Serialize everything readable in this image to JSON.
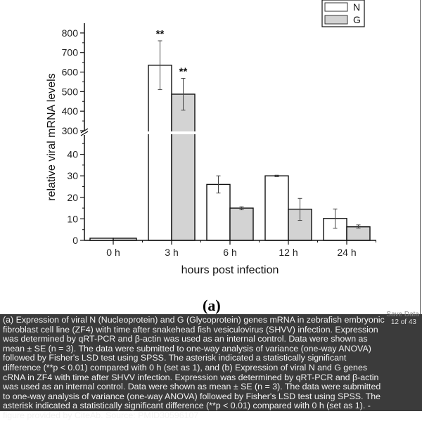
{
  "chart_data": {
    "type": "bar",
    "categories": [
      "0 h",
      "3 h",
      "6 h",
      "12 h",
      "24 h"
    ],
    "series": [
      {
        "name": "N",
        "color": "#ffffff",
        "values": [
          1,
          635,
          26,
          30,
          10.2
        ],
        "error_low": [
          1,
          510,
          22,
          29.6,
          5.6
        ],
        "error_high": [
          1,
          760,
          30,
          30.3,
          14.6
        ],
        "annotations": [
          "",
          "**",
          "",
          "",
          ""
        ]
      },
      {
        "name": "G",
        "color": "#d3d3d3",
        "values": [
          1,
          487,
          15,
          14.5,
          6.3
        ],
        "error_low": [
          1,
          405,
          14.2,
          9.3,
          5.7
        ],
        "error_high": [
          1,
          568,
          15.6,
          19.5,
          7.2
        ],
        "annotations": [
          "",
          "**",
          "",
          "",
          ""
        ]
      }
    ],
    "xlabel": "hours post infection",
    "ylabel": "relative viral mRNA levels",
    "y_axis_break": true,
    "ylim_lower": [
      0,
      49
    ],
    "ylim_upper": [
      300,
      850
    ],
    "yticks_lower": [
      0,
      10,
      20,
      30,
      40
    ],
    "yticks_upper": [
      300,
      400,
      500,
      600,
      700,
      800
    ],
    "legend": "top-right",
    "grid": false
  },
  "panel_label": "(a)",
  "caption": {
    "text": "(a) Expression of viral N (Nucleoprotein) and G (Glycoprotein) genes mRNA in zebrafish embryonic fibroblast cell line (ZF4) with time after snakehead fish vesiculovirus (SHVV) infection. Expression was determined by qRT-PCR and β-actin was used as an internal control. Data were shown as mean ± SE (n = 3). The data were submitted to one-way analysis of variance (one-way ANOVA) followed by Fisher's LSD test using SPSS. The asterisk indicated a statistically significant difference (**p < 0.01) compared with 0 h (set as 1), and (b) Expression of viral N and G genes cRNA in ZF4 with time after SHVV infection. Expression was determined by qRT-PCR and β-actin was used as an internal control. Data were shown as mean ± SE (n = 3). The data were submitted to one-way analysis of variance (one-way ANOVA) followed by Fisher's LSD test using SPSS. The asterisk indicated a statistically significant difference (**p < 0.01) compared with 0 h (set as 1). - figure provided by CiteAb. Source: PMID30596107",
    "counter": "12 of 43",
    "save_label": "Save Data"
  }
}
